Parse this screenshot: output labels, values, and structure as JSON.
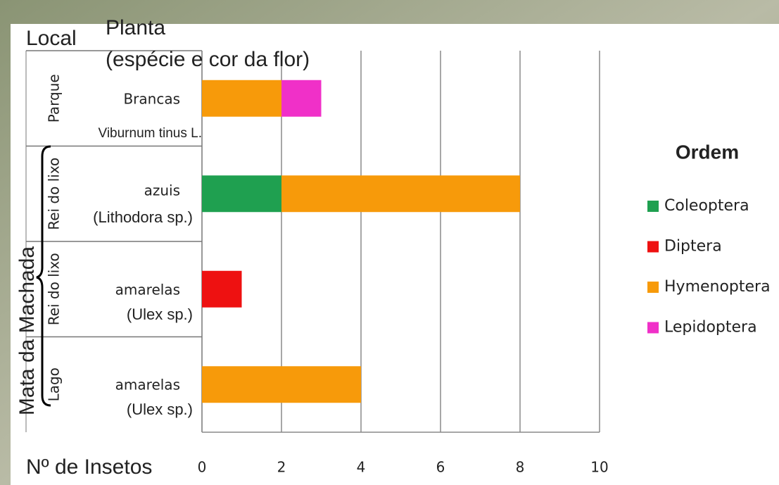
{
  "chart_data": {
    "type": "stacked-bar-horizontal",
    "header_local": "Local",
    "header_planta": [
      "Planta",
      "(espécie e cor da flor)"
    ],
    "group_label": "Mata da Machada",
    "locations": [
      "Parque",
      "Rei do lixo",
      "Rei do lixo",
      "Lago"
    ],
    "categories": [
      "Brancas",
      "azuis",
      "amarelas",
      "amarelas"
    ],
    "species": [
      "Viburnum tinus L.",
      "(Lithodora sp.)",
      "(Ulex sp.)",
      "(Ulex sp.)"
    ],
    "series": [
      {
        "name": "Coleoptera",
        "color": "#1fa050",
        "values": [
          0,
          2,
          0,
          0
        ]
      },
      {
        "name": "Diptera",
        "color": "#ee1111",
        "values": [
          0,
          0,
          1,
          0
        ]
      },
      {
        "name": "Hymenoptera",
        "color": "#f79a0a",
        "values": [
          2,
          6,
          0,
          4
        ]
      },
      {
        "name": "Lepidoptera",
        "color": "#f030c8",
        "values": [
          1,
          0,
          0,
          0
        ]
      }
    ],
    "legend_title": "Ordem",
    "xlabel": "Nº de Insetos",
    "xlim": [
      0,
      10
    ],
    "xticks": [
      0,
      2,
      4,
      6,
      8,
      10
    ],
    "grid": true
  }
}
